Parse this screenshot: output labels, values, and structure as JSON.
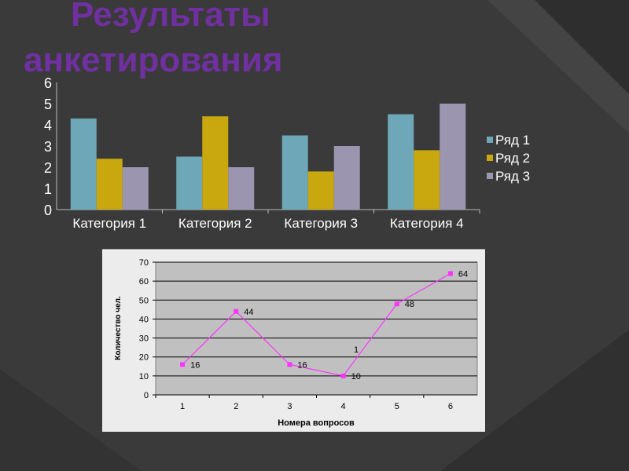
{
  "slide": {
    "title_line1": "Результаты",
    "title_line2": "анкетирования"
  },
  "colors": {
    "background": "#3a3a3a",
    "title": "#7030a0",
    "line_series": "#ff33ff",
    "plot_area_line": "#c0c0c0"
  },
  "chart_data": [
    {
      "type": "bar",
      "categories": [
        "Категория 1",
        "Категория 2",
        "Категория 3",
        "Категория 4"
      ],
      "series": [
        {
          "name": "Ряд 1",
          "values": [
            4.3,
            2.5,
            3.5,
            4.5
          ],
          "color": "#6ea7b8"
        },
        {
          "name": "Ряд 2",
          "values": [
            2.4,
            4.4,
            1.8,
            2.8
          ],
          "color": "#c9a80f"
        },
        {
          "name": "Ряд 3",
          "values": [
            2,
            2,
            3,
            5
          ],
          "color": "#9b95b0"
        }
      ],
      "ylim": [
        0,
        6
      ],
      "yticks": [
        0,
        1,
        2,
        3,
        4,
        5,
        6
      ],
      "grid": false,
      "legend": "right"
    },
    {
      "type": "line",
      "x": [
        1,
        2,
        3,
        4,
        5,
        6
      ],
      "values": [
        16,
        44,
        16,
        10,
        48,
        64
      ],
      "data_labels": [
        "16",
        "44",
        "16",
        "10",
        "48",
        "64"
      ],
      "annotation": "1",
      "xlabel": "Номера вопросов",
      "ylabel": "Количество чел.",
      "ylim": [
        0,
        70
      ],
      "yticks": [
        0,
        10,
        20,
        30,
        40,
        50,
        60,
        70
      ],
      "grid": true,
      "legend": "none"
    }
  ]
}
